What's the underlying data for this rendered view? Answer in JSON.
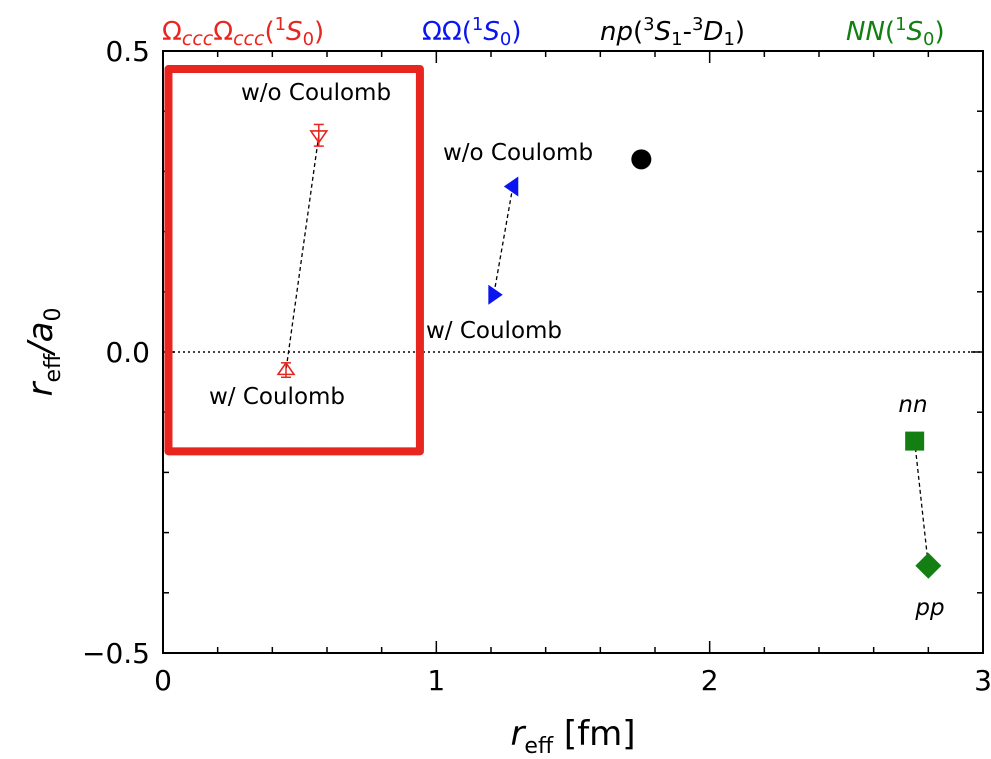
{
  "chart_data": {
    "type": "scatter",
    "title": "",
    "xlabel": {
      "main": "r",
      "sub": "eff",
      "unit": " [fm]"
    },
    "ylabel": {
      "main": "r",
      "sub1": "eff",
      "slash": "/a",
      "sub2": "0"
    },
    "xlim": [
      0,
      3
    ],
    "ylim": [
      -0.5,
      0.5
    ],
    "x_ticks": [
      0,
      1,
      2,
      3
    ],
    "x_tick_labels": [
      "0",
      "1",
      "2",
      "3"
    ],
    "y_ticks": [
      -0.5,
      0.0,
      0.5
    ],
    "y_tick_labels": [
      "−0.5",
      "0.0",
      "0.5"
    ],
    "x_minor_step": 0.2,
    "y_minor_step": 0.1,
    "zero_line": true,
    "grid": false,
    "series": [
      {
        "name": "ΩcccΩccc(1S0)",
        "color": "#e8251f",
        "marker": "triangle-open",
        "connect": true,
        "points": [
          {
            "x": 0.57,
            "y": 0.36,
            "yerr": 0.018,
            "orient": "down",
            "label": "w/o Coulomb"
          },
          {
            "x": 0.45,
            "y": -0.03,
            "yerr": 0.012,
            "orient": "up",
            "label": "w/ Coulomb"
          }
        ]
      },
      {
        "name": "ΩΩ(1S0)",
        "color": "#0a14f0",
        "marker": "triangle-filled",
        "connect": true,
        "points": [
          {
            "x": 1.28,
            "y": 0.275,
            "orient": "left",
            "label": "w/o Coulomb"
          },
          {
            "x": 1.21,
            "y": 0.095,
            "orient": "right",
            "label": "w/ Coulomb"
          }
        ]
      },
      {
        "name": "np(3S1-3D1)",
        "color": "#000000",
        "marker": "circle",
        "connect": false,
        "points": [
          {
            "x": 1.75,
            "y": 0.32,
            "label": ""
          }
        ]
      },
      {
        "name": "NN(1S0)",
        "color": "#137f13",
        "marker": "square-diamond",
        "connect": true,
        "points": [
          {
            "x": 2.75,
            "y": -0.148,
            "shape": "square",
            "label": "nn"
          },
          {
            "x": 2.8,
            "y": -0.355,
            "shape": "diamond",
            "label": "pp"
          }
        ]
      }
    ],
    "highlight_box": {
      "x0": 0.02,
      "x1": 0.94,
      "y0": -0.165,
      "y1": 0.47,
      "color": "#e8251f"
    }
  },
  "headers": [
    {
      "series_index": 0,
      "color": "#e8251f"
    },
    {
      "series_index": 1,
      "color": "#0a14f0"
    },
    {
      "series_index": 2,
      "color": "#000000"
    },
    {
      "series_index": 3,
      "color": "#137f13"
    }
  ]
}
